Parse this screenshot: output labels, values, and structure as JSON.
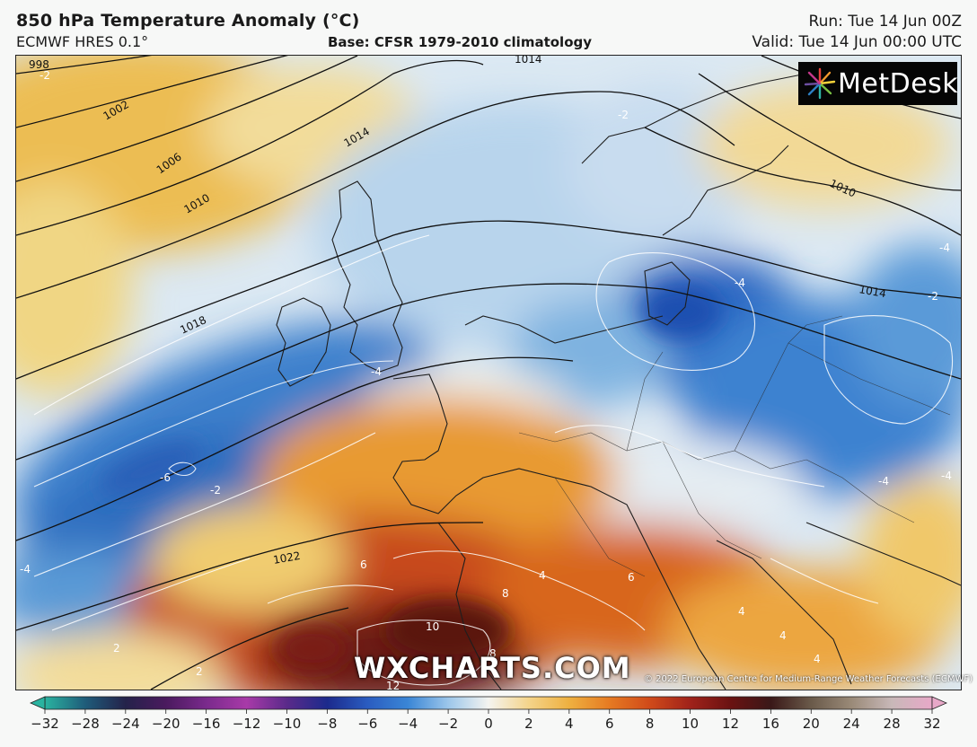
{
  "header": {
    "title": "850 hPa Temperature Anomaly (°C)",
    "model": "ECMWF HRES 0.1°",
    "base": "Base: CFSR 1979-2010 climatology",
    "run": "Run: Tue 14 Jun 00Z",
    "valid": "Valid: Tue 14 Jun 00:00 UTC"
  },
  "logo": {
    "text": "MetDesk"
  },
  "watermark": "WXCHARTS.COM",
  "copyright": "© 2022 European Centre for Medium-Range Weather Forecasts (ECMWF)",
  "isobar_labels": [
    "998",
    "1002",
    "1006",
    "1010",
    "1014",
    "1014",
    "1018",
    "1022",
    "1010",
    "1014"
  ],
  "anomaly_labels": [
    "-2",
    "-2",
    "-4",
    "-4",
    "-6",
    "-2",
    "-4",
    "-4",
    "-2",
    "-4",
    "4",
    "6",
    "8",
    "10",
    "8",
    "12",
    "6",
    "4",
    "4",
    "2",
    "-4",
    "4",
    "2"
  ],
  "colorbar": {
    "ticks": [
      -32,
      -28,
      -24,
      -20,
      -16,
      -12,
      -10,
      -8,
      -6,
      -4,
      -2,
      0,
      2,
      4,
      6,
      8,
      10,
      12,
      16,
      20,
      24,
      28,
      32
    ],
    "colors": [
      "#2ab3a0",
      "#1f5c7a",
      "#24224a",
      "#4a1a5e",
      "#7a2a8c",
      "#a83aa8",
      "#5a2a8a",
      "#1c2a8c",
      "#2a5cc0",
      "#3a86d6",
      "#9cc6ea",
      "#f4f4f0",
      "#f4d48a",
      "#eeb040",
      "#e67a22",
      "#d04a1a",
      "#a0221a",
      "#6a1212",
      "#3a1818",
      "#6a5a4a",
      "#9a8a78",
      "#c8b8b8",
      "#e8a8c8"
    ]
  }
}
